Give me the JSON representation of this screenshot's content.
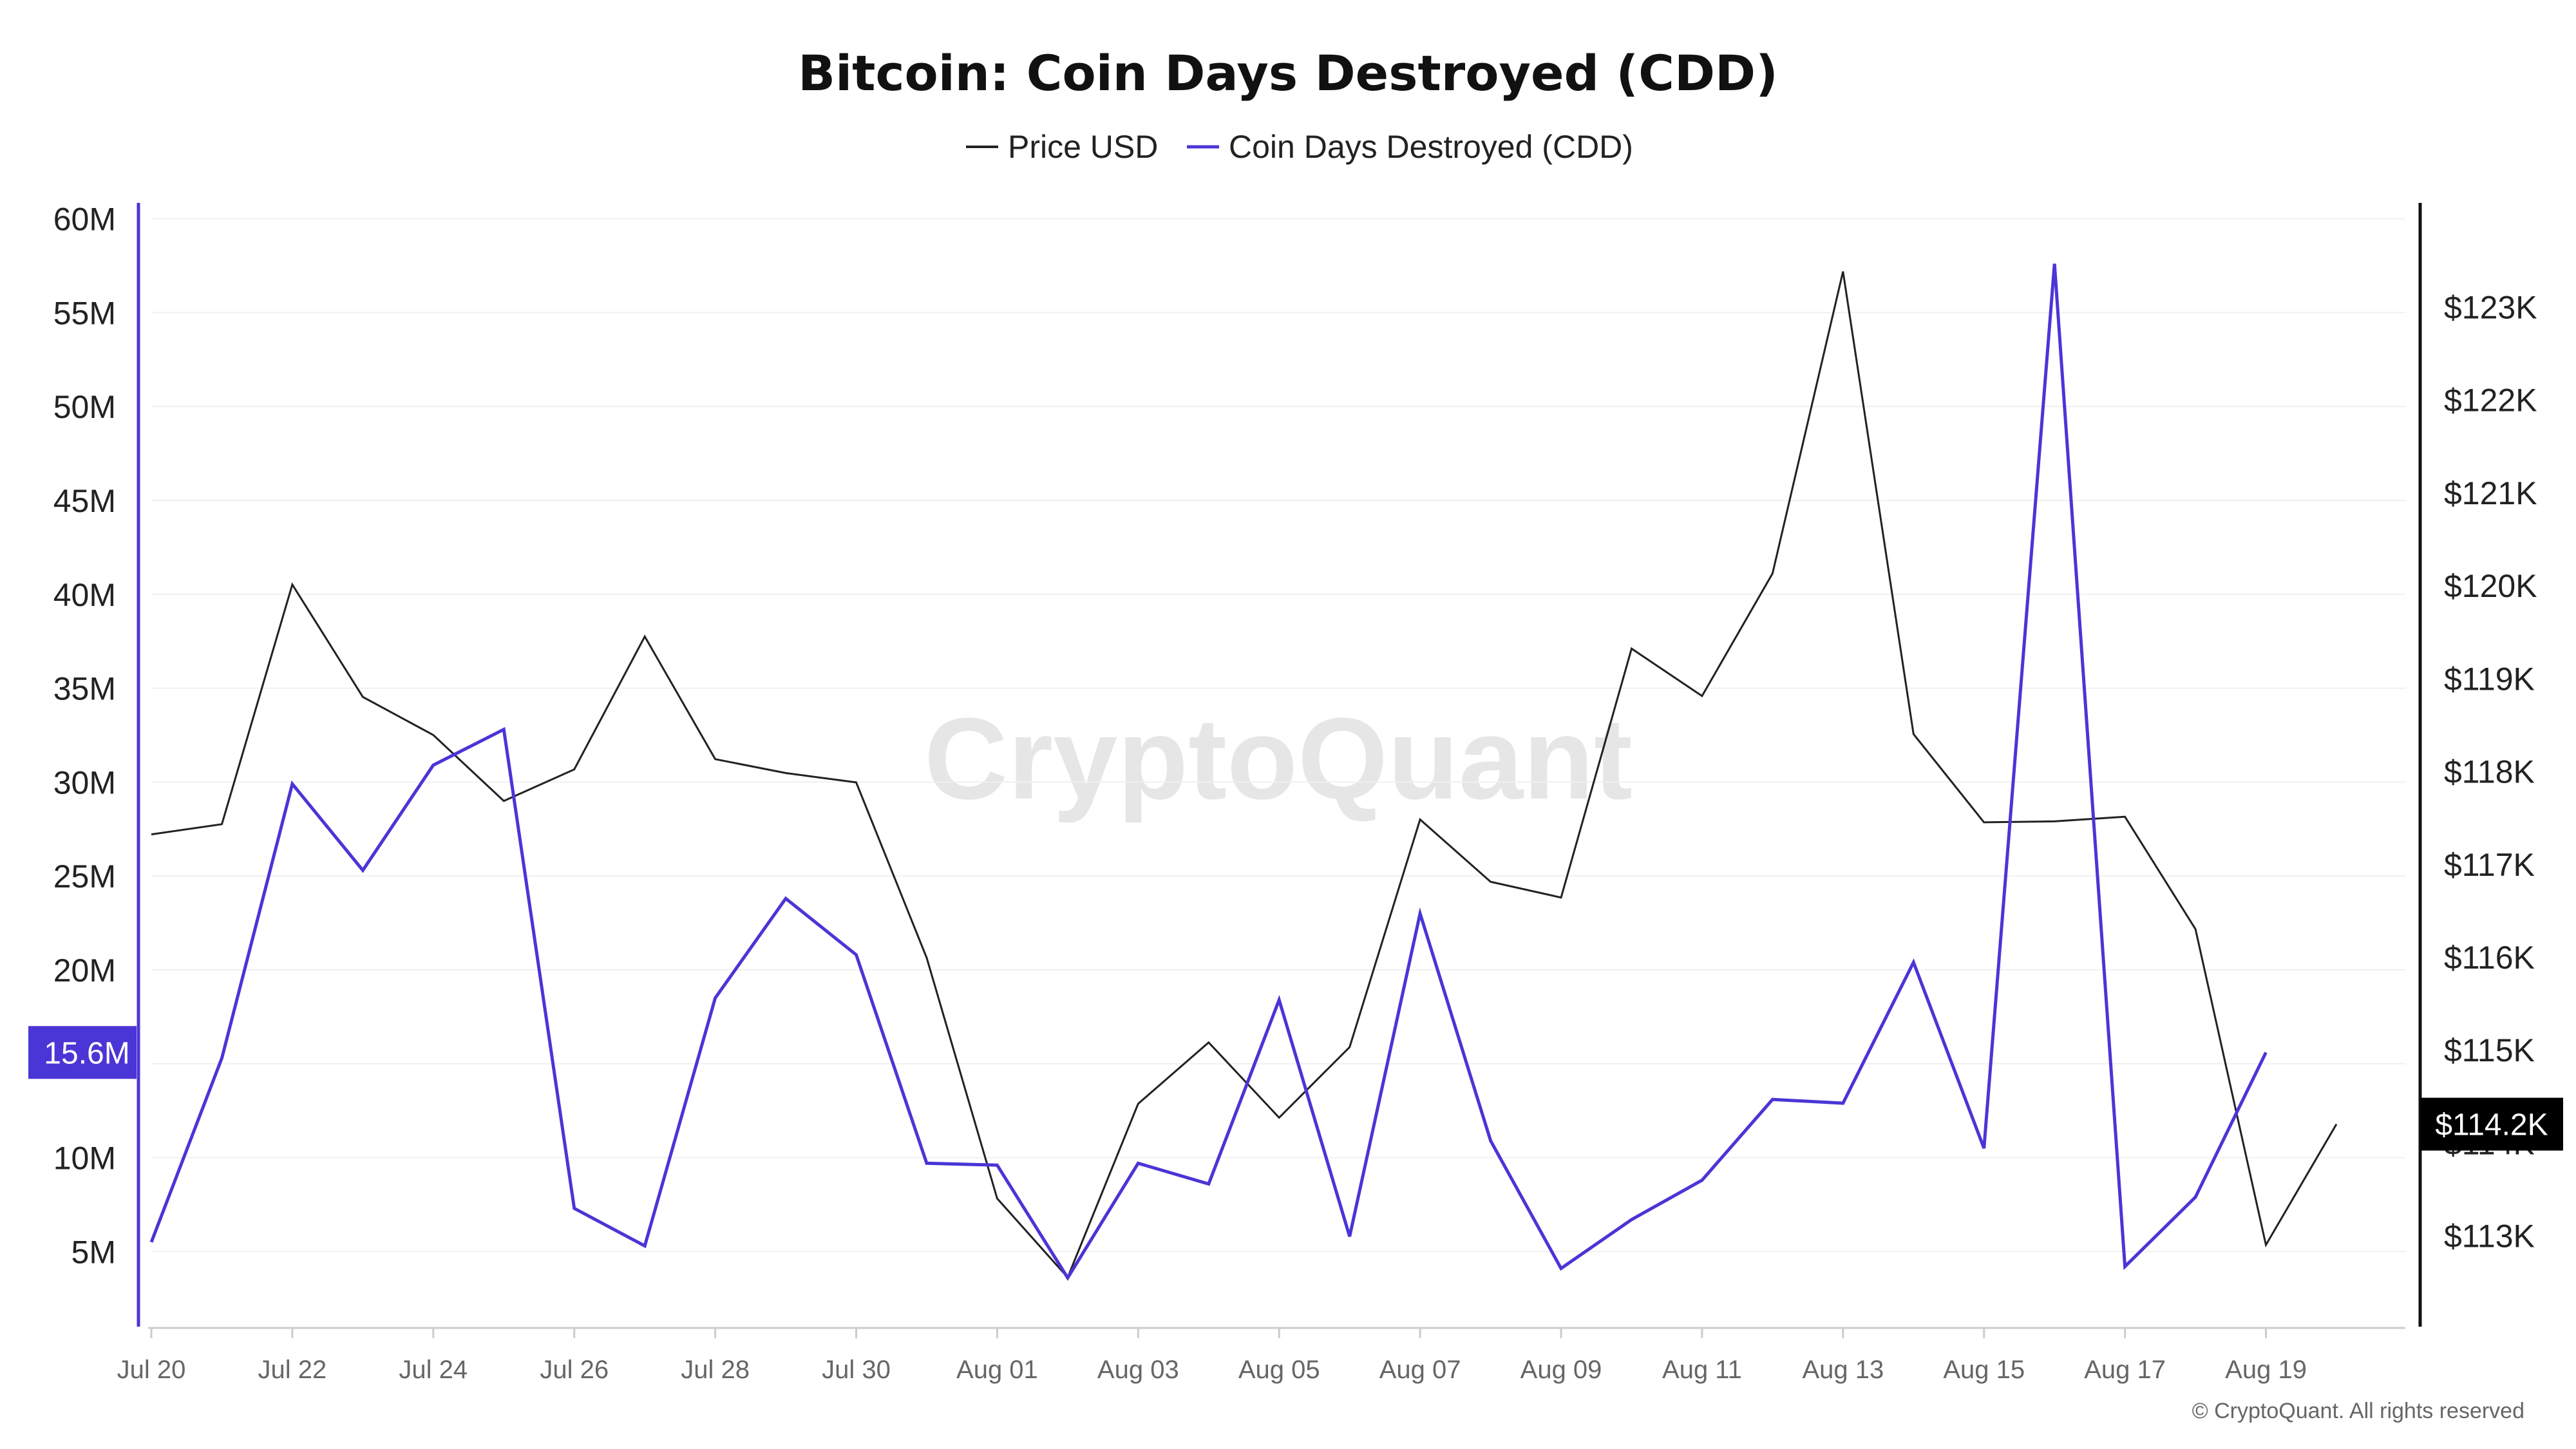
{
  "header": {
    "title": "Bitcoin: Coin Days Destroyed (CDD)"
  },
  "legend": {
    "items": [
      {
        "label": "Price USD",
        "color": "#222222"
      },
      {
        "label": "Coin Days Destroyed (CDD)",
        "color": "#4a35d6"
      }
    ],
    "placement": "top-center"
  },
  "watermark": "CryptoQuant",
  "copyright": "© CryptoQuant. All rights reserved",
  "badges": {
    "left_value": "15.6M",
    "right_value": "$114.2K"
  },
  "chart_data": {
    "type": "line",
    "x": [
      "Jul 20",
      "Jul 21",
      "Jul 22",
      "Jul 23",
      "Jul 24",
      "Jul 25",
      "Jul 26",
      "Jul 27",
      "Jul 28",
      "Jul 29",
      "Jul 30",
      "Jul 31",
      "Aug 01",
      "Aug 02",
      "Aug 03",
      "Aug 04",
      "Aug 05",
      "Aug 06",
      "Aug 07",
      "Aug 08",
      "Aug 09",
      "Aug 10",
      "Aug 11",
      "Aug 12",
      "Aug 13",
      "Aug 14",
      "Aug 15",
      "Aug 16",
      "Aug 17",
      "Aug 18",
      "Aug 19",
      "Aug 20"
    ],
    "x_tick_labels": [
      "Jul 20",
      "Jul 22",
      "Jul 24",
      "Jul 26",
      "Jul 28",
      "Jul 30",
      "Aug 01",
      "Aug 03",
      "Aug 05",
      "Aug 07",
      "Aug 09",
      "Aug 11",
      "Aug 13",
      "Aug 15",
      "Aug 17",
      "Aug 19"
    ],
    "series": [
      {
        "name": "Price USD",
        "axis": "right",
        "color": "#222222",
        "values": [
          117320,
          117430,
          120010,
          118800,
          118390,
          117680,
          118020,
          119450,
          118130,
          117980,
          117880,
          115990,
          113400,
          112550,
          114420,
          115080,
          114270,
          115030,
          117480,
          116810,
          116640,
          119320,
          118810,
          120130,
          123380,
          118400,
          117450,
          117460,
          117510,
          116300,
          112900,
          114200
        ]
      },
      {
        "name": "Coin Days Destroyed (CDD)",
        "axis": "left",
        "color": "#4a35d6",
        "values": [
          5.5,
          15.3,
          29.9,
          25.3,
          30.9,
          32.8,
          7.3,
          5.3,
          18.5,
          23.8,
          20.8,
          9.7,
          9.6,
          3.6,
          9.7,
          8.6,
          18.4,
          5.8,
          23.0,
          10.9,
          4.1,
          6.7,
          8.8,
          13.1,
          12.9,
          20.4,
          10.5,
          57.6,
          4.2,
          7.9,
          15.6,
          null
        ]
      }
    ],
    "y_left": {
      "min": 1,
      "max": 60.5,
      "ticks": [
        5,
        10,
        15,
        20,
        25,
        30,
        35,
        40,
        45,
        50,
        55,
        60
      ],
      "tick_labels": [
        "5M",
        "10M",
        "15M",
        "20M",
        "25M",
        "30M",
        "35M",
        "40M",
        "45M",
        "50M",
        "55M",
        "60M"
      ]
    },
    "y_right": {
      "min": 112020,
      "max": 124050,
      "ticks": [
        113000,
        114000,
        115000,
        116000,
        117000,
        118000,
        119000,
        120000,
        121000,
        122000,
        123000
      ],
      "tick_labels": [
        "$113K",
        "$114K",
        "$115K",
        "$116K",
        "$117K",
        "$118K",
        "$119K",
        "$120K",
        "$121K",
        "$122K",
        "$123K"
      ]
    },
    "grid": true
  }
}
